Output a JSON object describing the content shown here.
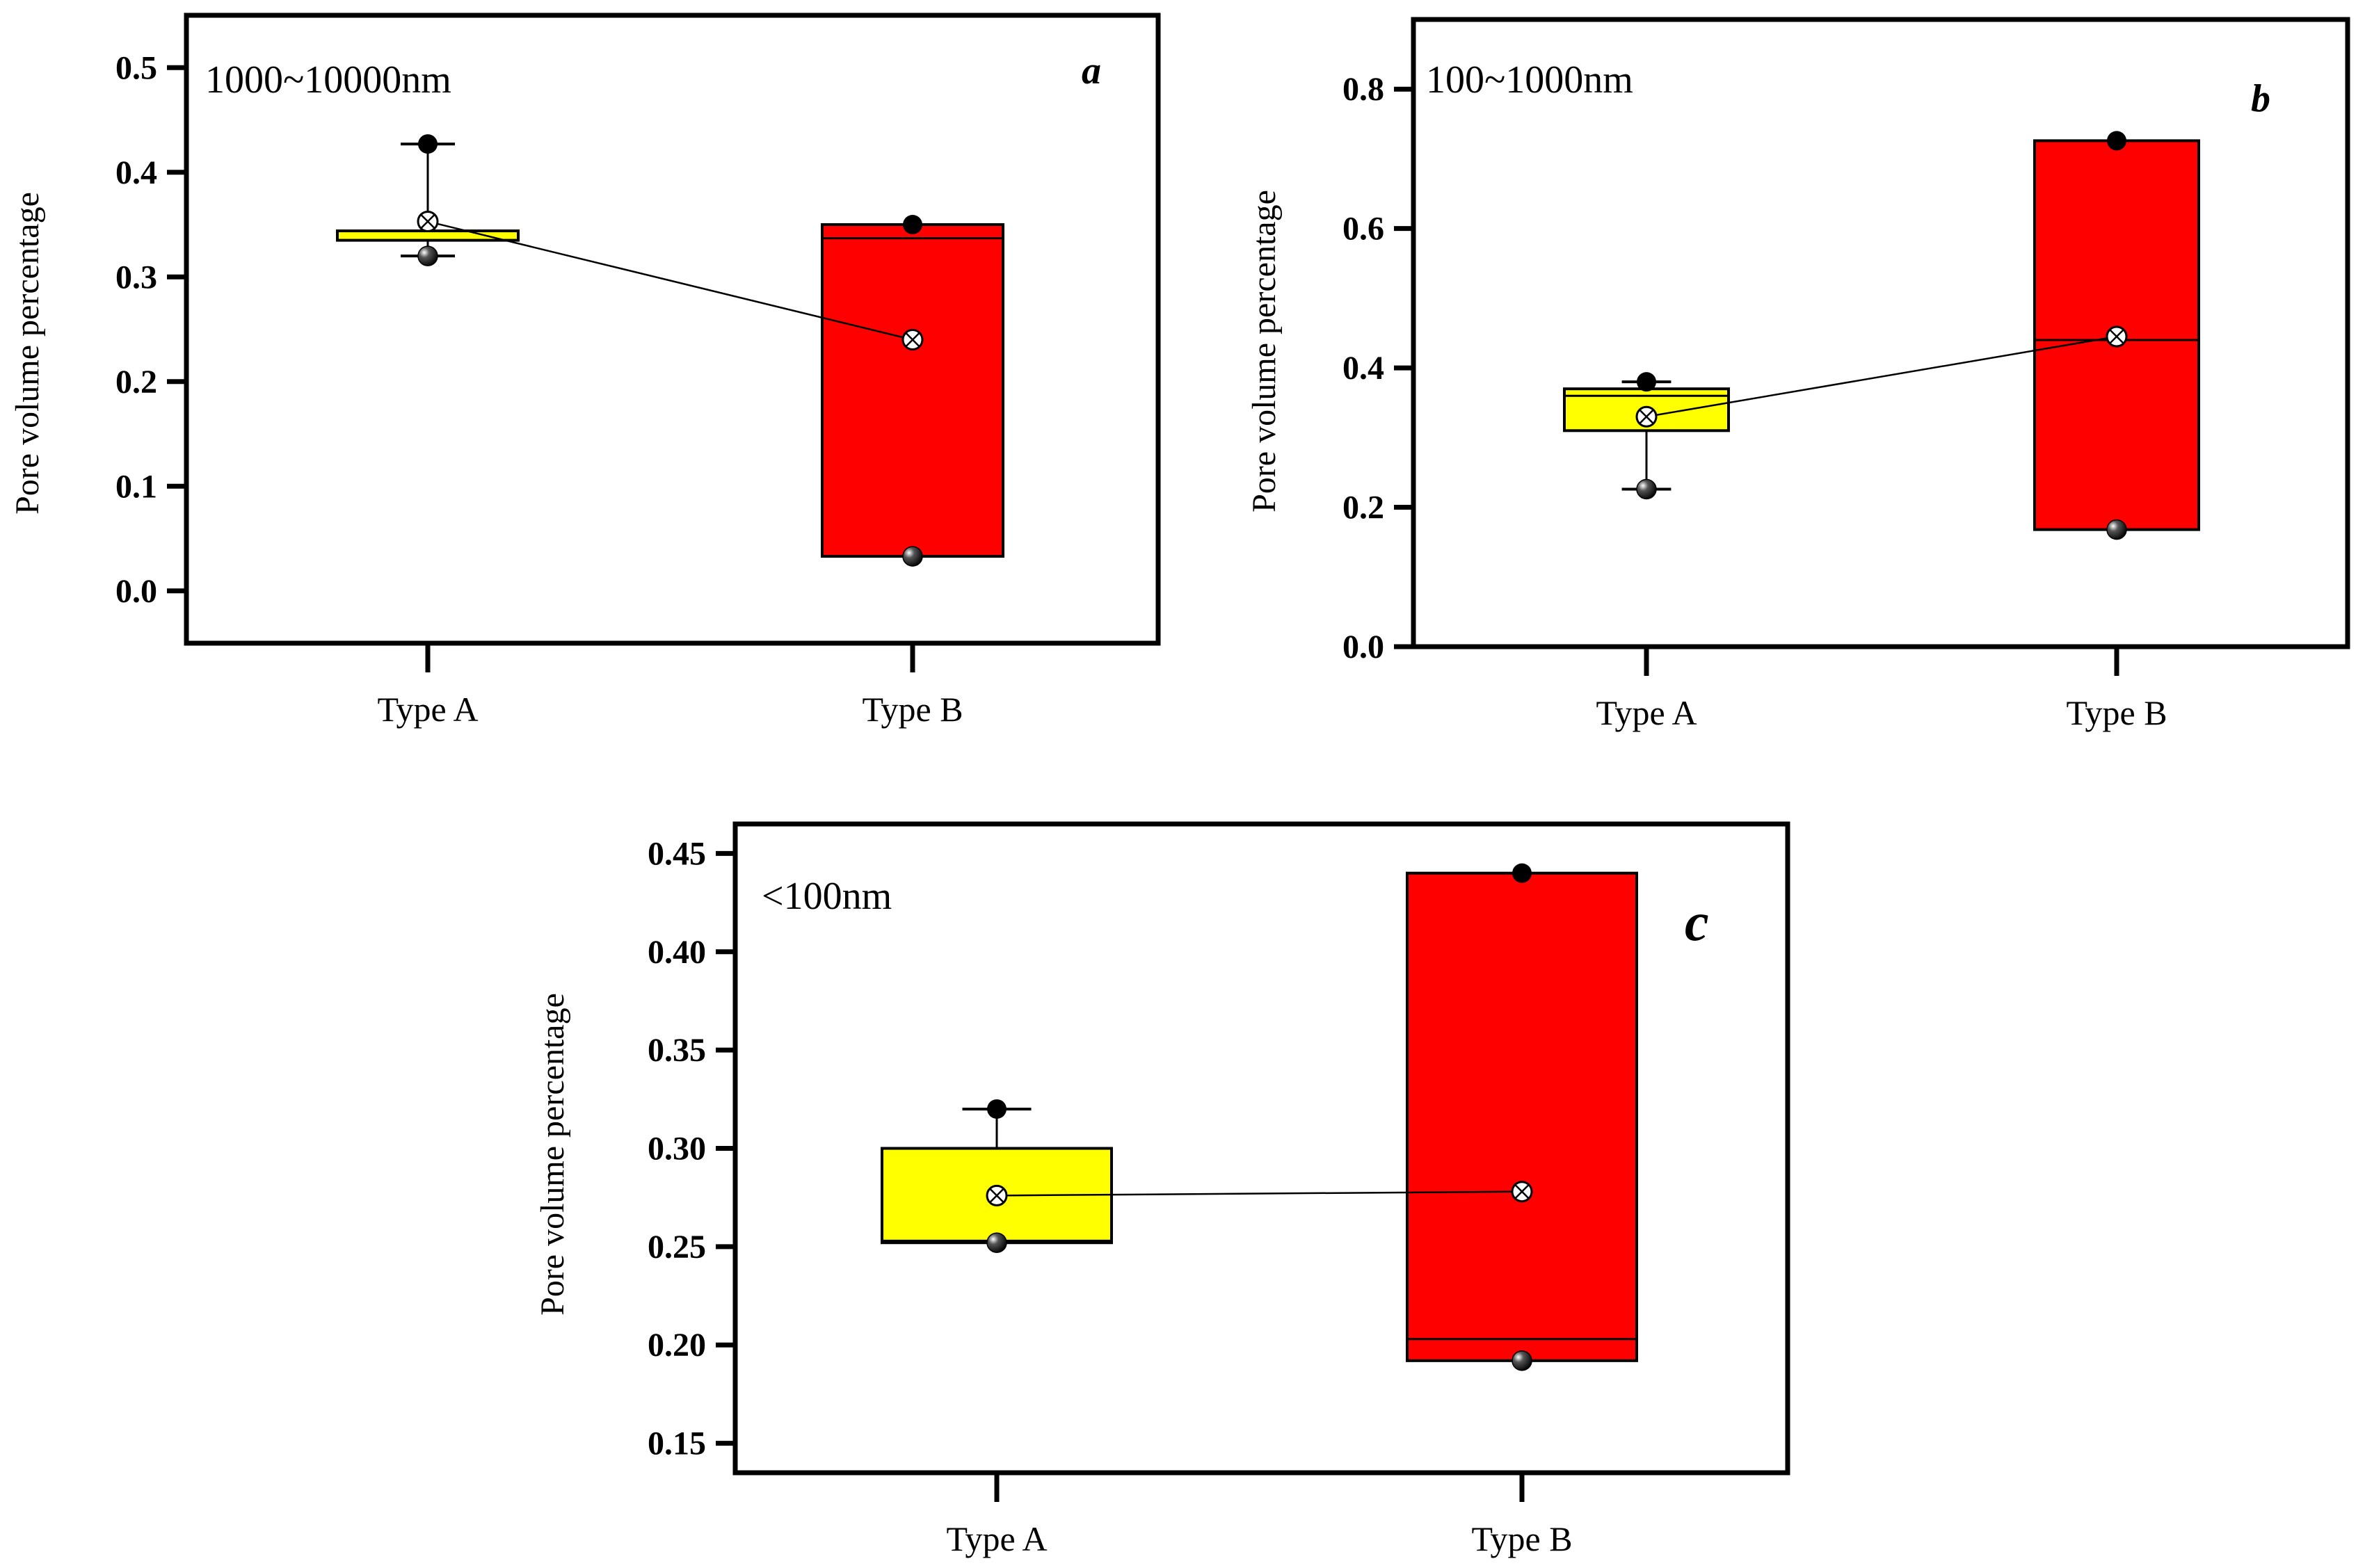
{
  "figure": {
    "background": "#ffffff"
  },
  "colors": {
    "type_a_box": "#ffff00",
    "type_b_box": "#ff0000",
    "frame": "#000000"
  },
  "chart_data": [
    {
      "type": "box",
      "panel": "a",
      "label": "1000~10000nm",
      "ylabel": "Pore volume percentage",
      "ylim": [
        -0.05,
        0.55
      ],
      "yticks": [
        0.0,
        0.1,
        0.2,
        0.3,
        0.4,
        0.5
      ],
      "ytick_labels": [
        "0.0",
        "0.1",
        "0.2",
        "0.3",
        "0.4",
        "0.5"
      ],
      "categories": [
        "Type A",
        "Type B"
      ],
      "boxes": [
        {
          "q1": 0.335,
          "median": 0.335,
          "q3": 0.344,
          "whisker_low": 0.32,
          "whisker_high": 0.427,
          "mean": 0.353,
          "min": 0.32,
          "max": 0.427
        },
        {
          "q1": 0.033,
          "median": 0.337,
          "q3": 0.35,
          "whisker_low": null,
          "whisker_high": null,
          "mean": 0.24,
          "min": 0.033,
          "max": 0.35
        }
      ]
    },
    {
      "type": "box",
      "panel": "b",
      "label": "100~1000nm",
      "ylabel": "Pore volume percentage",
      "ylim": [
        0.0,
        0.9
      ],
      "yticks": [
        0.0,
        0.2,
        0.4,
        0.6,
        0.8
      ],
      "ytick_labels": [
        "0.0",
        "0.2",
        "0.4",
        "0.6",
        "0.8"
      ],
      "categories": [
        "Type A",
        "Type B"
      ],
      "boxes": [
        {
          "q1": 0.31,
          "median": 0.36,
          "q3": 0.37,
          "whisker_low": 0.226,
          "whisker_high": 0.38,
          "mean": 0.33,
          "min": 0.226,
          "max": 0.38
        },
        {
          "q1": 0.168,
          "median": 0.44,
          "q3": 0.726,
          "whisker_low": null,
          "whisker_high": null,
          "mean": 0.445,
          "min": 0.168,
          "max": 0.726
        }
      ]
    },
    {
      "type": "box",
      "panel": "c",
      "label": "<100nm",
      "ylabel": "Pore volume percentage",
      "ylim": [
        0.135,
        0.465
      ],
      "yticks": [
        0.15,
        0.2,
        0.25,
        0.3,
        0.35,
        0.4,
        0.45
      ],
      "ytick_labels": [
        "0.15",
        "0.20",
        "0.25",
        "0.30",
        "0.35",
        "0.40",
        "0.45"
      ],
      "categories": [
        "Type A",
        "Type B"
      ],
      "boxes": [
        {
          "q1": 0.252,
          "median": 0.253,
          "q3": 0.3,
          "whisker_low": null,
          "whisker_high": 0.32,
          "mean": 0.276,
          "min": 0.252,
          "max": 0.32
        },
        {
          "q1": 0.192,
          "median": 0.203,
          "q3": 0.44,
          "whisker_low": null,
          "whisker_high": null,
          "mean": 0.278,
          "min": 0.192,
          "max": 0.44
        }
      ]
    }
  ]
}
